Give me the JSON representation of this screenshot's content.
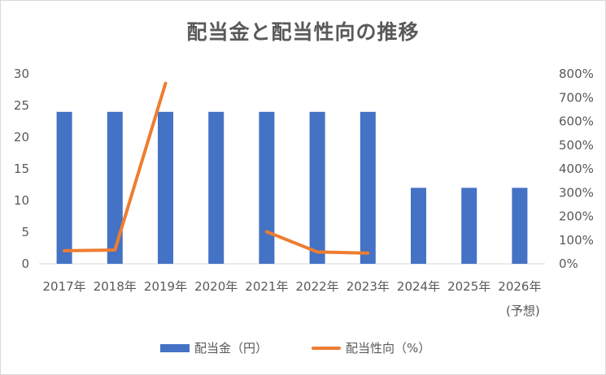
{
  "colors": {
    "bar": "#4472c4",
    "line": "#ed7d31",
    "grid": "#d9d9d9",
    "text": "#595959"
  },
  "chart_data": {
    "type": "bar",
    "title": "配当金と配当性向の推移",
    "categories": [
      "2017年",
      "2018年",
      "2019年",
      "2020年",
      "2021年",
      "2022年",
      "2023年",
      "2024年",
      "2025年",
      "2026年"
    ],
    "category_sublabels": [
      "",
      "",
      "",
      "",
      "",
      "",
      "",
      "",
      "",
      "(予想)"
    ],
    "series": [
      {
        "name": "配当金（円）",
        "type": "bar",
        "axis": "left",
        "values": [
          24,
          24,
          24,
          24,
          24,
          24,
          24,
          12,
          12,
          12
        ]
      },
      {
        "name": "配当性向（%）",
        "type": "line",
        "axis": "right",
        "values": [
          55,
          58,
          760,
          null,
          135,
          50,
          45,
          null,
          null,
          null
        ]
      }
    ],
    "y_left": {
      "lim": [
        0,
        30
      ],
      "ticks": [
        "0",
        "5",
        "10",
        "15",
        "20",
        "25",
        "30"
      ]
    },
    "y_right": {
      "lim": [
        0,
        800
      ],
      "ticks": [
        "0%",
        "100%",
        "200%",
        "300%",
        "400%",
        "500%",
        "600%",
        "700%",
        "800%"
      ]
    },
    "legend_position": "bottom",
    "grid": false
  }
}
